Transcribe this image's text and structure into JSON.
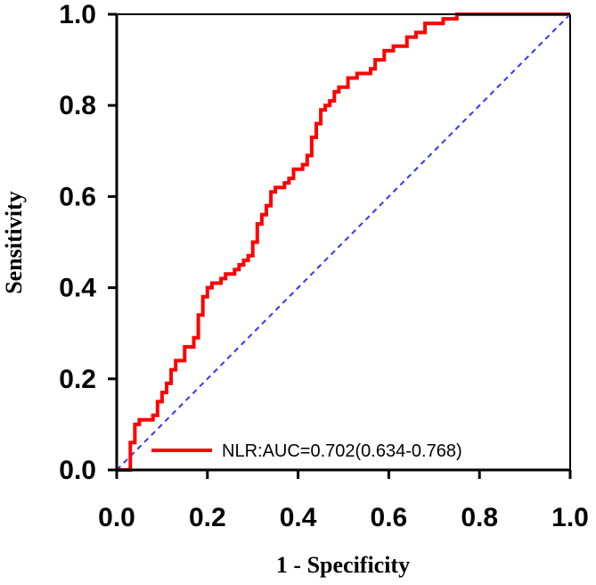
{
  "chart_data": {
    "type": "line",
    "title": "",
    "xlabel": "1 - Specificity",
    "ylabel": "Sensitivity",
    "xlim": [
      0,
      1
    ],
    "ylim": [
      0,
      1
    ],
    "x_ticks": [
      "0.0",
      "0.2",
      "0.4",
      "0.6",
      "0.8",
      "1.0"
    ],
    "y_ticks": [
      "0.0",
      "0.2",
      "0.4",
      "0.6",
      "0.8",
      "1.0"
    ],
    "grid": false,
    "legend_position": "bottom-right",
    "series": [
      {
        "name": "NLR:AUC=0.702(0.634-0.768)",
        "color": "#ff0000",
        "style": "step",
        "points": [
          [
            0.0,
            0.0
          ],
          [
            0.03,
            0.0
          ],
          [
            0.03,
            0.06
          ],
          [
            0.04,
            0.06
          ],
          [
            0.04,
            0.1
          ],
          [
            0.05,
            0.1
          ],
          [
            0.05,
            0.11
          ],
          [
            0.08,
            0.11
          ],
          [
            0.08,
            0.12
          ],
          [
            0.09,
            0.12
          ],
          [
            0.09,
            0.15
          ],
          [
            0.1,
            0.15
          ],
          [
            0.1,
            0.17
          ],
          [
            0.11,
            0.17
          ],
          [
            0.11,
            0.19
          ],
          [
            0.12,
            0.19
          ],
          [
            0.12,
            0.22
          ],
          [
            0.13,
            0.22
          ],
          [
            0.13,
            0.24
          ],
          [
            0.15,
            0.24
          ],
          [
            0.15,
            0.27
          ],
          [
            0.17,
            0.27
          ],
          [
            0.17,
            0.29
          ],
          [
            0.18,
            0.29
          ],
          [
            0.18,
            0.34
          ],
          [
            0.19,
            0.34
          ],
          [
            0.19,
            0.38
          ],
          [
            0.2,
            0.38
          ],
          [
            0.2,
            0.4
          ],
          [
            0.21,
            0.4
          ],
          [
            0.21,
            0.41
          ],
          [
            0.23,
            0.41
          ],
          [
            0.23,
            0.42
          ],
          [
            0.24,
            0.42
          ],
          [
            0.24,
            0.43
          ],
          [
            0.26,
            0.43
          ],
          [
            0.26,
            0.44
          ],
          [
            0.27,
            0.44
          ],
          [
            0.27,
            0.45
          ],
          [
            0.28,
            0.45
          ],
          [
            0.28,
            0.46
          ],
          [
            0.29,
            0.46
          ],
          [
            0.29,
            0.47
          ],
          [
            0.3,
            0.47
          ],
          [
            0.3,
            0.5
          ],
          [
            0.31,
            0.5
          ],
          [
            0.31,
            0.54
          ],
          [
            0.32,
            0.54
          ],
          [
            0.32,
            0.56
          ],
          [
            0.33,
            0.56
          ],
          [
            0.33,
            0.58
          ],
          [
            0.34,
            0.58
          ],
          [
            0.34,
            0.61
          ],
          [
            0.35,
            0.61
          ],
          [
            0.35,
            0.62
          ],
          [
            0.37,
            0.62
          ],
          [
            0.37,
            0.63
          ],
          [
            0.38,
            0.63
          ],
          [
            0.38,
            0.64
          ],
          [
            0.39,
            0.64
          ],
          [
            0.39,
            0.66
          ],
          [
            0.41,
            0.66
          ],
          [
            0.41,
            0.67
          ],
          [
            0.42,
            0.67
          ],
          [
            0.42,
            0.69
          ],
          [
            0.43,
            0.69
          ],
          [
            0.43,
            0.73
          ],
          [
            0.44,
            0.73
          ],
          [
            0.44,
            0.76
          ],
          [
            0.45,
            0.76
          ],
          [
            0.45,
            0.79
          ],
          [
            0.46,
            0.79
          ],
          [
            0.46,
            0.8
          ],
          [
            0.47,
            0.8
          ],
          [
            0.47,
            0.81
          ],
          [
            0.48,
            0.81
          ],
          [
            0.48,
            0.83
          ],
          [
            0.49,
            0.83
          ],
          [
            0.49,
            0.84
          ],
          [
            0.51,
            0.84
          ],
          [
            0.51,
            0.86
          ],
          [
            0.53,
            0.86
          ],
          [
            0.53,
            0.87
          ],
          [
            0.56,
            0.87
          ],
          [
            0.56,
            0.88
          ],
          [
            0.57,
            0.88
          ],
          [
            0.57,
            0.9
          ],
          [
            0.59,
            0.9
          ],
          [
            0.59,
            0.92
          ],
          [
            0.61,
            0.92
          ],
          [
            0.61,
            0.93
          ],
          [
            0.64,
            0.93
          ],
          [
            0.64,
            0.95
          ],
          [
            0.66,
            0.95
          ],
          [
            0.66,
            0.96
          ],
          [
            0.68,
            0.96
          ],
          [
            0.68,
            0.98
          ],
          [
            0.72,
            0.98
          ],
          [
            0.72,
            0.99
          ],
          [
            0.75,
            0.99
          ],
          [
            0.75,
            1.0
          ],
          [
            1.0,
            1.0
          ]
        ]
      },
      {
        "name": "",
        "color": "#3333ff",
        "style": "dashed",
        "points": [
          [
            0,
            0
          ],
          [
            1,
            1
          ]
        ]
      }
    ]
  }
}
